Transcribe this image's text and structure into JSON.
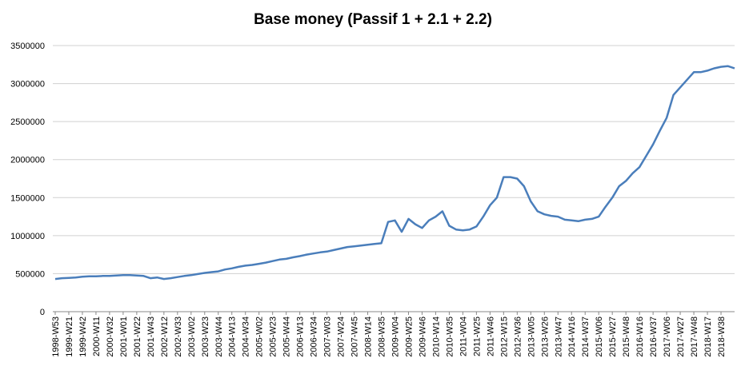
{
  "chart_data": {
    "type": "line",
    "title": "Base money (Passif 1 + 2.1 + 2.2)",
    "categories": [
      "1998-W53",
      null,
      "1999-W21",
      null,
      "1999-W42",
      null,
      "2000-W11",
      null,
      "2000-W32",
      null,
      "2001-W01",
      null,
      "2001-W22",
      null,
      "2001-W43",
      null,
      "2002-W12",
      null,
      "2002-W33",
      null,
      "2003-W02",
      null,
      "2003-W23",
      null,
      "2003-W44",
      null,
      "2004-W13",
      null,
      "2004-W34",
      null,
      "2005-W02",
      null,
      "2005-W23",
      null,
      "2005-W44",
      null,
      "2006-W13",
      null,
      "2006-W34",
      null,
      "2007-W03",
      null,
      "2007-W24",
      null,
      "2007-W45",
      null,
      "2008-W14",
      null,
      "2008-W35",
      null,
      "2009-W04",
      null,
      "2009-W25",
      null,
      "2009-W46",
      null,
      "2010-W14",
      null,
      "2010-W35",
      null,
      "2011-W04",
      null,
      "2011-W25",
      null,
      "2011-W46",
      null,
      "2012-W15",
      null,
      "2012-W36",
      null,
      "2013-W05",
      null,
      "2013-W26",
      null,
      "2013-W47",
      null,
      "2014-W16",
      null,
      "2014-W37",
      null,
      "2015-W06",
      null,
      "2015-W27",
      null,
      "2015-W48",
      null,
      "2016-W16",
      null,
      "2016-W37",
      null,
      "2017-W06",
      null,
      "2017-W27",
      null,
      "2017-W48",
      null,
      "2018-W17",
      null,
      "2018-W38",
      null,
      null
    ],
    "values": [
      430000,
      440000,
      445000,
      450000,
      460000,
      465000,
      465000,
      470000,
      470000,
      475000,
      480000,
      480000,
      475000,
      470000,
      440000,
      450000,
      430000,
      440000,
      455000,
      470000,
      480000,
      495000,
      510000,
      520000,
      530000,
      555000,
      570000,
      590000,
      605000,
      615000,
      630000,
      645000,
      665000,
      685000,
      695000,
      715000,
      730000,
      750000,
      765000,
      780000,
      790000,
      810000,
      830000,
      850000,
      860000,
      870000,
      880000,
      890000,
      900000,
      1180000,
      1200000,
      1050000,
      1220000,
      1150000,
      1100000,
      1200000,
      1250000,
      1320000,
      1130000,
      1080000,
      1070000,
      1080000,
      1120000,
      1250000,
      1400000,
      1500000,
      1770000,
      1770000,
      1750000,
      1650000,
      1450000,
      1320000,
      1280000,
      1260000,
      1250000,
      1210000,
      1200000,
      1190000,
      1210000,
      1220000,
      1250000,
      1380000,
      1500000,
      1650000,
      1720000,
      1820000,
      1900000,
      2050000,
      2200000,
      2380000,
      2550000,
      2850000,
      2950000,
      3050000,
      3150000,
      3150000,
      3170000,
      3200000,
      3220000,
      3230000,
      3200000
    ],
    "color": "#4a7ebb",
    "ylim": [
      0,
      3500000
    ],
    "yticks": [
      0,
      500000,
      1000000,
      1500000,
      2000000,
      2500000,
      3000000,
      3500000
    ],
    "grid": true
  }
}
